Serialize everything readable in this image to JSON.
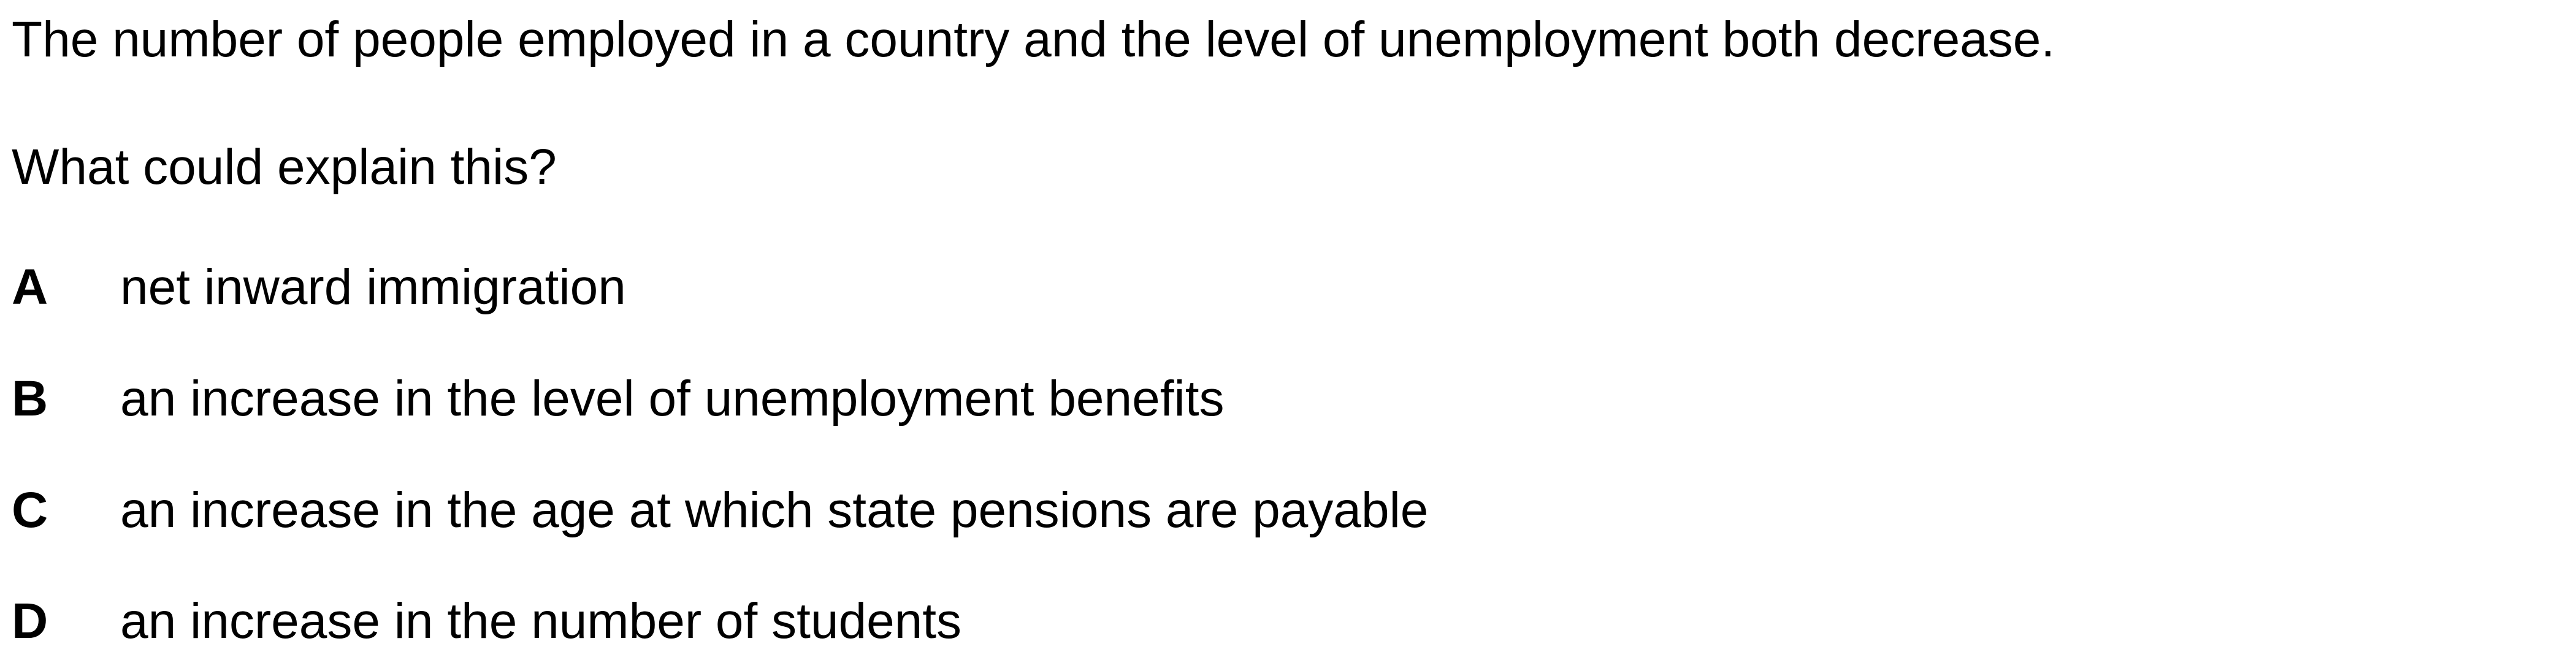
{
  "question": {
    "stem": "The number of people employed in a country and the level of unemployment both decrease.",
    "prompt": "What could explain this?",
    "options": [
      {
        "letter": "A",
        "text": "net inward immigration"
      },
      {
        "letter": "B",
        "text": "an increase in the level of unemployment benefits"
      },
      {
        "letter": "C",
        "text": "an increase in the age at which state pensions are payable"
      },
      {
        "letter": "D",
        "text": "an increase in the number of students"
      }
    ]
  }
}
